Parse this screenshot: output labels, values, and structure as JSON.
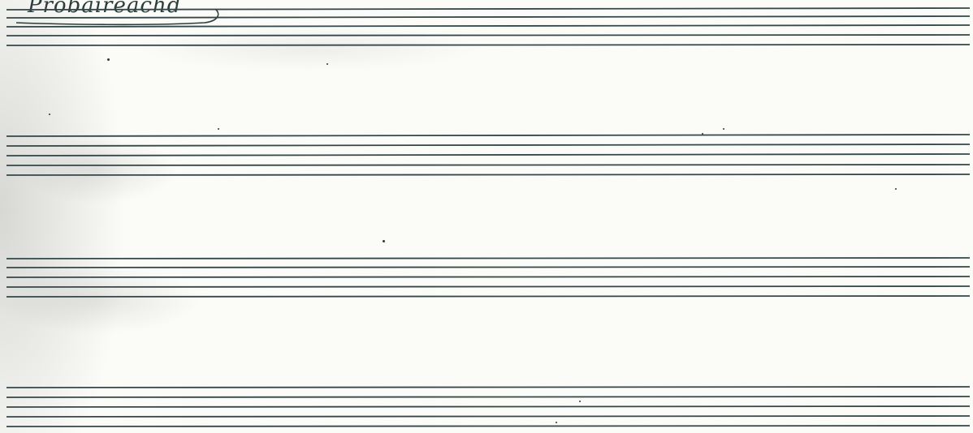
{
  "document": {
    "title": "Probaireachd"
  },
  "staves": {
    "count": 4,
    "lines_per_staff": 5
  },
  "colors": {
    "paper": "#fbfbf8",
    "ink": "#2c3d3d",
    "staff_line": "#34474a"
  }
}
